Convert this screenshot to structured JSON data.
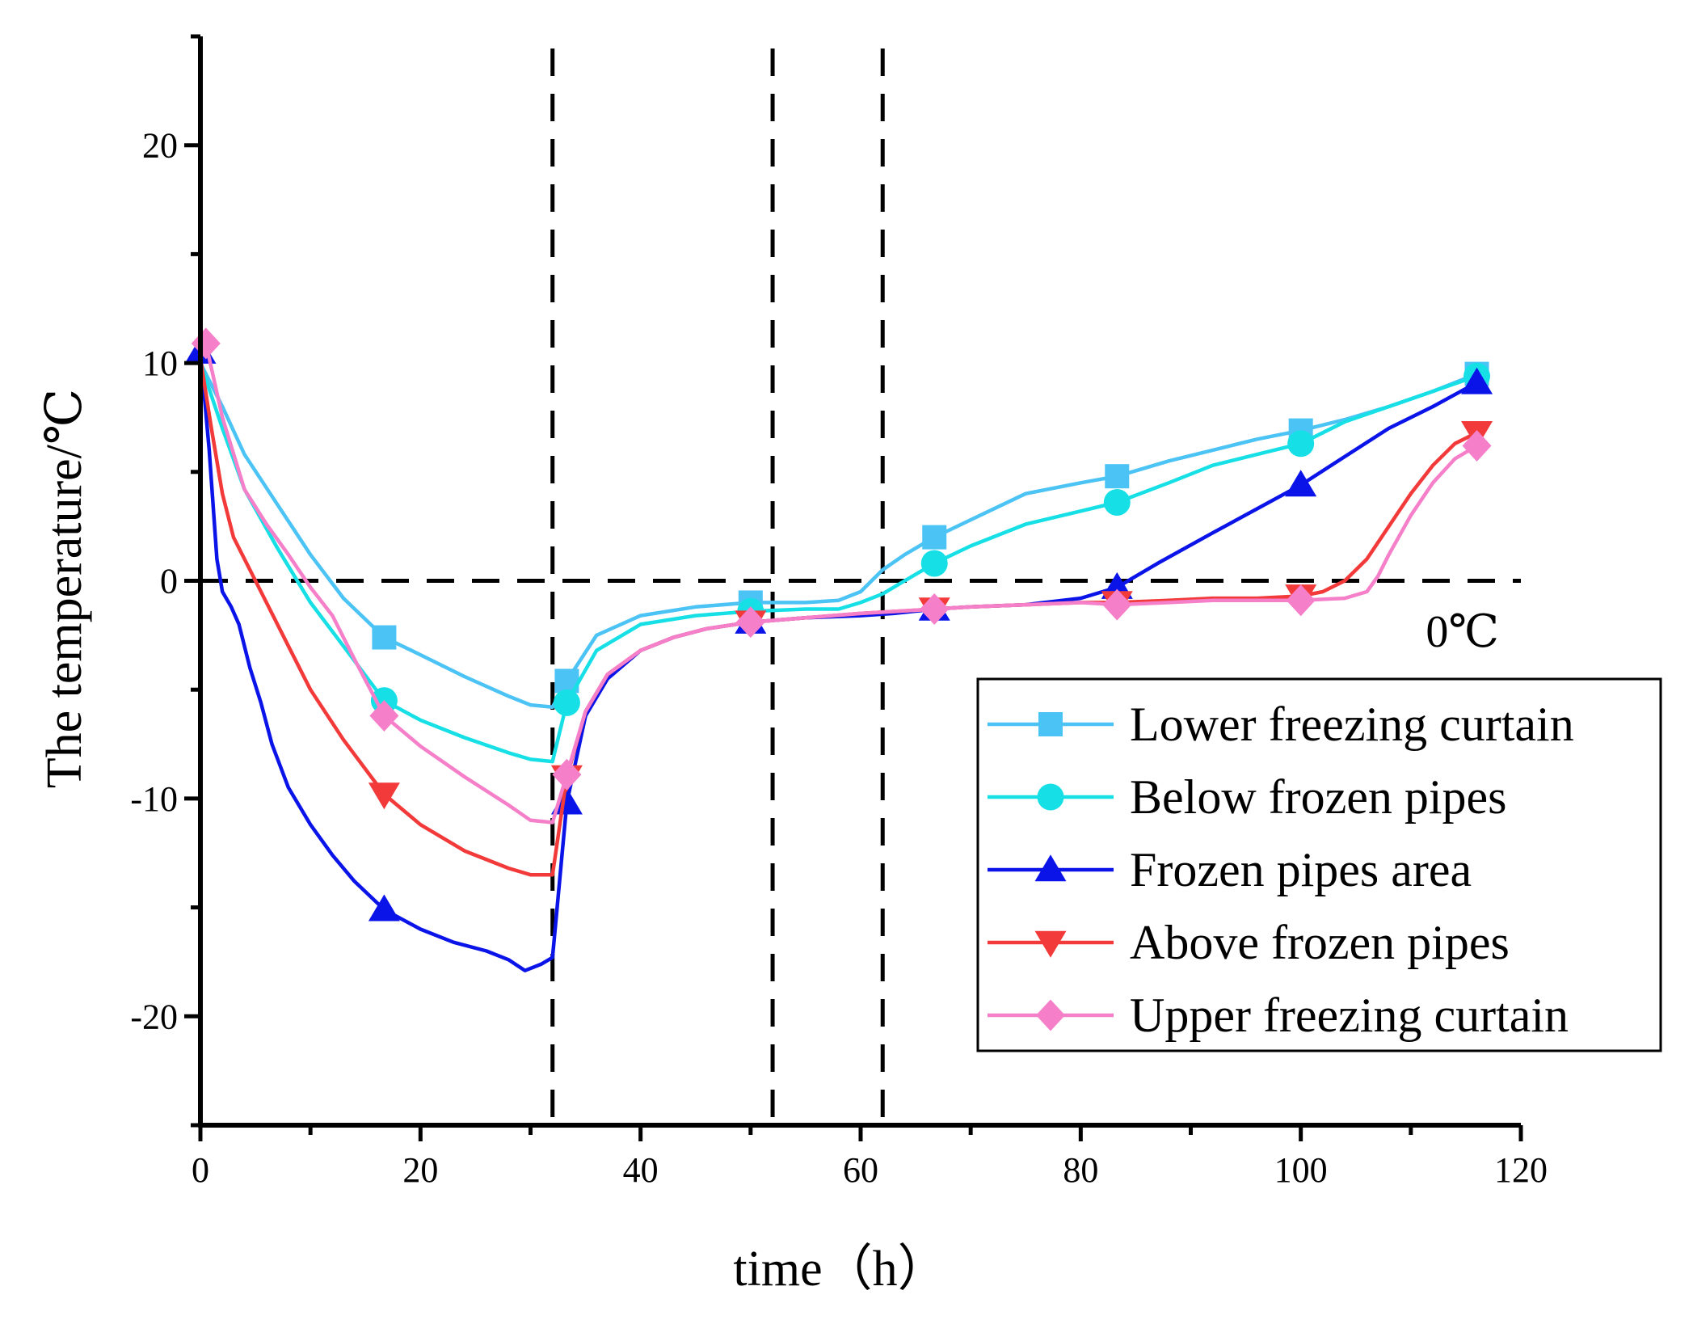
{
  "chart_data": {
    "type": "line",
    "title": "",
    "xlabel": "time（h）",
    "ylabel": "The temperature/℃",
    "xlim": [
      0,
      120
    ],
    "ylim": [
      -25,
      25
    ],
    "xticks": [
      0,
      20,
      40,
      60,
      80,
      100,
      120
    ],
    "yticks": [
      -20,
      -10,
      0,
      10,
      20
    ],
    "xtick_labels": [
      "0",
      "20",
      "40",
      "60",
      "80",
      "100",
      "120"
    ],
    "ytick_labels": [
      "-20",
      "-10",
      "0",
      "10",
      "20"
    ],
    "grid": false,
    "legend_position": "lower-right",
    "reference_lines": {
      "vertical_x": [
        32,
        52,
        62
      ],
      "horizontal_y": 0
    },
    "annotations": [
      {
        "text": "0℃",
        "x": 118,
        "y": -2.3
      }
    ],
    "series": [
      {
        "name": "Lower freezing curtain",
        "color": "#4cc3f5",
        "marker": "square",
        "line": [
          [
            0,
            10
          ],
          [
            2,
            8
          ],
          [
            4,
            5.8
          ],
          [
            7,
            3.5
          ],
          [
            10,
            1.2
          ],
          [
            13,
            -0.8
          ],
          [
            16.7,
            -2.6
          ],
          [
            20,
            -3.4
          ],
          [
            24,
            -4.4
          ],
          [
            28,
            -5.3
          ],
          [
            30,
            -5.7
          ],
          [
            32,
            -5.8
          ],
          [
            33.3,
            -4.6
          ],
          [
            36,
            -2.5
          ],
          [
            40,
            -1.6
          ],
          [
            45,
            -1.2
          ],
          [
            50,
            -1.0
          ],
          [
            55,
            -1.0
          ],
          [
            58,
            -0.9
          ],
          [
            60,
            -0.5
          ],
          [
            62,
            0.5
          ],
          [
            64,
            1.2
          ],
          [
            66.7,
            2.0
          ],
          [
            70,
            2.8
          ],
          [
            75,
            4.0
          ],
          [
            80,
            4.5
          ],
          [
            83.3,
            4.8
          ],
          [
            88,
            5.5
          ],
          [
            92,
            6.0
          ],
          [
            96,
            6.5
          ],
          [
            100,
            6.9
          ],
          [
            104,
            7.4
          ],
          [
            108,
            8.0
          ],
          [
            112,
            8.7
          ],
          [
            116,
            9.5
          ]
        ],
        "markers": [
          [
            16.7,
            -2.6
          ],
          [
            33.3,
            -4.6
          ],
          [
            50,
            -1.0
          ],
          [
            66.7,
            2.0
          ],
          [
            83.3,
            4.8
          ],
          [
            100,
            6.9
          ],
          [
            116,
            9.5
          ]
        ]
      },
      {
        "name": "Below frozen pipes",
        "color": "#16e0e6",
        "marker": "circle",
        "line": [
          [
            0,
            10
          ],
          [
            2,
            7
          ],
          [
            4,
            4.2
          ],
          [
            7,
            1.5
          ],
          [
            10,
            -1.0
          ],
          [
            13,
            -3.0
          ],
          [
            16.7,
            -5.5
          ],
          [
            20,
            -6.4
          ],
          [
            24,
            -7.2
          ],
          [
            28,
            -7.9
          ],
          [
            30,
            -8.2
          ],
          [
            32,
            -8.3
          ],
          [
            33.3,
            -5.6
          ],
          [
            36,
            -3.2
          ],
          [
            40,
            -2.0
          ],
          [
            45,
            -1.6
          ],
          [
            50,
            -1.4
          ],
          [
            55,
            -1.3
          ],
          [
            58,
            -1.3
          ],
          [
            60,
            -1.0
          ],
          [
            62,
            -0.6
          ],
          [
            64,
            0.0
          ],
          [
            66.7,
            0.8
          ],
          [
            70,
            1.6
          ],
          [
            75,
            2.6
          ],
          [
            80,
            3.2
          ],
          [
            83.3,
            3.6
          ],
          [
            88,
            4.5
          ],
          [
            92,
            5.3
          ],
          [
            96,
            5.8
          ],
          [
            100,
            6.3
          ],
          [
            104,
            7.3
          ],
          [
            108,
            8.0
          ],
          [
            112,
            8.7
          ],
          [
            116,
            9.4
          ]
        ],
        "markers": [
          [
            16.7,
            -5.5
          ],
          [
            33.3,
            -5.6
          ],
          [
            50,
            -1.4
          ],
          [
            66.7,
            0.8
          ],
          [
            83.3,
            3.6
          ],
          [
            100,
            6.3
          ],
          [
            116,
            9.4
          ]
        ]
      },
      {
        "name": "Frozen pipes area",
        "color": "#0a14e8",
        "marker": "triangle-up",
        "line": [
          [
            0,
            10.5
          ],
          [
            0.8,
            6
          ],
          [
            1.5,
            1
          ],
          [
            2,
            -0.5
          ],
          [
            2.8,
            -1.2
          ],
          [
            3.5,
            -2
          ],
          [
            4.5,
            -4
          ],
          [
            5.5,
            -5.6
          ],
          [
            6.5,
            -7.5
          ],
          [
            8,
            -9.5
          ],
          [
            10,
            -11.2
          ],
          [
            12,
            -12.6
          ],
          [
            14,
            -13.8
          ],
          [
            16.7,
            -15.1
          ],
          [
            20,
            -16.0
          ],
          [
            23,
            -16.6
          ],
          [
            26,
            -17.0
          ],
          [
            28,
            -17.4
          ],
          [
            29.5,
            -17.9
          ],
          [
            31,
            -17.6
          ],
          [
            32,
            -17.3
          ],
          [
            33.3,
            -10.2
          ],
          [
            35,
            -6.2
          ],
          [
            37,
            -4.5
          ],
          [
            40,
            -3.2
          ],
          [
            43,
            -2.6
          ],
          [
            46,
            -2.2
          ],
          [
            50,
            -1.9
          ],
          [
            55,
            -1.7
          ],
          [
            60,
            -1.6
          ],
          [
            63,
            -1.5
          ],
          [
            66.7,
            -1.3
          ],
          [
            70,
            -1.2
          ],
          [
            75,
            -1.1
          ],
          [
            80,
            -0.8
          ],
          [
            83.3,
            -0.3
          ],
          [
            87,
            0.8
          ],
          [
            92,
            2.2
          ],
          [
            96,
            3.3
          ],
          [
            100,
            4.4
          ],
          [
            104,
            5.7
          ],
          [
            108,
            7.0
          ],
          [
            112,
            8.0
          ],
          [
            116,
            9.1
          ]
        ],
        "markers": [
          [
            0,
            10.5
          ],
          [
            16.7,
            -15.1
          ],
          [
            33.3,
            -10.2
          ],
          [
            50,
            -1.9
          ],
          [
            66.7,
            -1.3
          ],
          [
            83.3,
            -0.3
          ],
          [
            100,
            4.4
          ],
          [
            116,
            9.1
          ]
        ]
      },
      {
        "name": "Above frozen pipes",
        "color": "#f33a3a",
        "marker": "triangle-down",
        "line": [
          [
            0,
            10.2
          ],
          [
            1,
            7
          ],
          [
            2,
            4
          ],
          [
            3,
            2
          ],
          [
            4.5,
            0.5
          ],
          [
            6,
            -1
          ],
          [
            8,
            -3
          ],
          [
            10,
            -5
          ],
          [
            13,
            -7.3
          ],
          [
            16.7,
            -9.8
          ],
          [
            20,
            -11.2
          ],
          [
            24,
            -12.4
          ],
          [
            28,
            -13.2
          ],
          [
            30,
            -13.5
          ],
          [
            32,
            -13.5
          ],
          [
            33.3,
            -9.0
          ],
          [
            35,
            -6.0
          ],
          [
            37,
            -4.3
          ],
          [
            40,
            -3.2
          ],
          [
            43,
            -2.6
          ],
          [
            46,
            -2.2
          ],
          [
            50,
            -1.9
          ],
          [
            55,
            -1.7
          ],
          [
            60,
            -1.5
          ],
          [
            66.7,
            -1.3
          ],
          [
            70,
            -1.2
          ],
          [
            75,
            -1.1
          ],
          [
            80,
            -1.0
          ],
          [
            83.3,
            -1.0
          ],
          [
            88,
            -0.9
          ],
          [
            92,
            -0.8
          ],
          [
            96,
            -0.8
          ],
          [
            100,
            -0.7
          ],
          [
            102,
            -0.5
          ],
          [
            104,
            0.0
          ],
          [
            106,
            1.0
          ],
          [
            108,
            2.5
          ],
          [
            110,
            4.0
          ],
          [
            112,
            5.3
          ],
          [
            114,
            6.3
          ],
          [
            116,
            6.8
          ]
        ],
        "markers": [
          [
            16.7,
            -9.8
          ],
          [
            33.3,
            -9.0
          ],
          [
            50,
            -1.9
          ],
          [
            66.7,
            -1.3
          ],
          [
            83.3,
            -1.0
          ],
          [
            100,
            -0.7
          ],
          [
            116,
            6.8
          ]
        ]
      },
      {
        "name": "Upper freezing curtain",
        "color": "#f57fc8",
        "marker": "diamond",
        "line": [
          [
            0.5,
            10.9
          ],
          [
            2,
            7.5
          ],
          [
            4,
            4.2
          ],
          [
            6,
            2.6
          ],
          [
            8,
            1.2
          ],
          [
            10,
            -0.3
          ],
          [
            12,
            -1.6
          ],
          [
            14,
            -3.6
          ],
          [
            16.7,
            -6.2
          ],
          [
            20,
            -7.6
          ],
          [
            24,
            -9.0
          ],
          [
            28,
            -10.3
          ],
          [
            30,
            -11.0
          ],
          [
            32,
            -11.1
          ],
          [
            33.3,
            -8.9
          ],
          [
            35,
            -6.0
          ],
          [
            37,
            -4.3
          ],
          [
            40,
            -3.2
          ],
          [
            43,
            -2.6
          ],
          [
            46,
            -2.2
          ],
          [
            50,
            -1.9
          ],
          [
            55,
            -1.7
          ],
          [
            60,
            -1.5
          ],
          [
            66.7,
            -1.3
          ],
          [
            70,
            -1.2
          ],
          [
            75,
            -1.1
          ],
          [
            80,
            -1.0
          ],
          [
            83.3,
            -1.1
          ],
          [
            88,
            -1.0
          ],
          [
            92,
            -0.9
          ],
          [
            96,
            -0.9
          ],
          [
            100,
            -0.9
          ],
          [
            104,
            -0.8
          ],
          [
            106,
            -0.5
          ],
          [
            107,
            0.2
          ],
          [
            108,
            1.2
          ],
          [
            110,
            3.0
          ],
          [
            112,
            4.5
          ],
          [
            114,
            5.6
          ],
          [
            116,
            6.2
          ]
        ],
        "markers": [
          [
            0.5,
            10.9
          ],
          [
            16.7,
            -6.2
          ],
          [
            33.3,
            -8.9
          ],
          [
            50,
            -1.9
          ],
          [
            66.7,
            -1.3
          ],
          [
            83.3,
            -1.1
          ],
          [
            100,
            -0.9
          ],
          [
            116,
            6.2
          ]
        ]
      }
    ]
  }
}
